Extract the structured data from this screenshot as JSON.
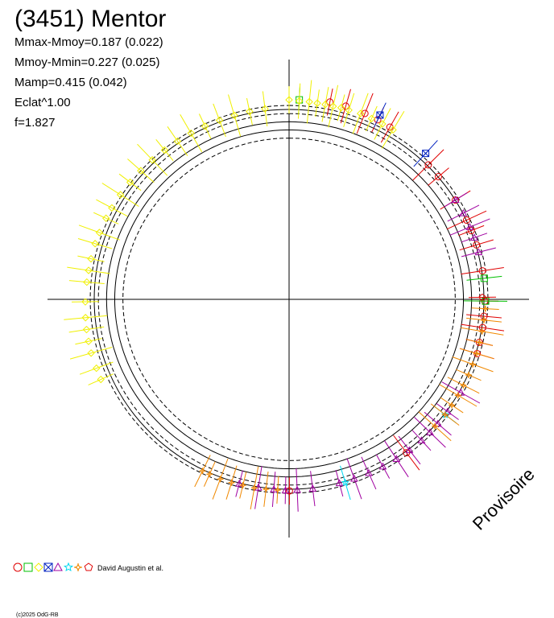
{
  "chart_data": {
    "type": "polar-lightcurve",
    "title": "(3451) Mentor",
    "stats": [
      "Mmax-Mmoy=0.187 (0.022)",
      "Mmoy-Mmin=0.227 (0.025)",
      "Mamp=0.415 (0.042)",
      "Eclat^1.00",
      "f=1.827"
    ],
    "watermark": "Provisoire",
    "credit": "David Augustin et al.",
    "copyright": "(c)2025 OdG-RB",
    "model": {
      "mmax_minus_mmoy": 0.187,
      "mmoy_minus_mmin": 0.227,
      "amplitude": 0.415,
      "radial_scale": 2.9
    },
    "series": [
      {
        "name": "circle",
        "marker": "circle",
        "color": "#e00000",
        "points": [
          [
            0.2,
            4.7
          ],
          [
            0.28,
            4.58
          ],
          [
            0.38,
            4.26
          ],
          [
            0.45,
            3.95
          ],
          [
            0.52,
            3.55
          ],
          [
            0.79,
            0.5
          ],
          [
            0.87,
            0.2
          ],
          [
            1.02,
            0.0
          ],
          [
            1.14,
            0.08
          ],
          [
            1.2,
            0.1
          ],
          [
            1.28,
            0.16
          ],
          [
            1.42,
            0.1
          ],
          [
            1.58,
            0.16
          ],
          [
            1.66,
            0.14
          ],
          [
            1.72,
            0.16
          ],
          [
            1.8,
            0.02
          ],
          [
            1.86,
            0.4
          ],
          [
            2.5,
            0.6
          ],
          [
            3.14,
            0.5
          ]
        ]
      },
      {
        "name": "square",
        "marker": "square",
        "color": "#00c000",
        "points": [
          [
            0.05,
            4.0
          ],
          [
            1.46,
            0.45
          ],
          [
            1.58,
            0.5
          ]
        ]
      },
      {
        "name": "diamond",
        "marker": "diamond",
        "color": "#f0f000",
        "points": [
          [
            0.0,
            3.9
          ],
          [
            0.05,
            3.5
          ],
          [
            0.1,
            3.5
          ],
          [
            0.14,
            3.3
          ],
          [
            0.18,
            3.3
          ],
          [
            0.22,
            3.2
          ],
          [
            0.26,
            3.4
          ],
          [
            0.3,
            3.3
          ],
          [
            0.36,
            3.55
          ],
          [
            0.42,
            3.3
          ],
          [
            0.48,
            3.25
          ],
          [
            0.54,
            3.2
          ],
          [
            4.3,
            4.4
          ],
          [
            4.36,
            4.3
          ],
          [
            4.44,
            4.4
          ],
          [
            4.5,
            4.2
          ],
          [
            4.56,
            4.1
          ],
          [
            4.62,
            3.9
          ],
          [
            4.7,
            3.6
          ],
          [
            4.8,
            3.3
          ],
          [
            4.86,
            3.15
          ],
          [
            4.92,
            3.05
          ],
          [
            5.0,
            3.0
          ],
          [
            5.06,
            2.8
          ],
          [
            5.14,
            2.55
          ],
          [
            5.2,
            2.35
          ],
          [
            5.28,
            2.1
          ],
          [
            5.36,
            1.85
          ],
          [
            5.44,
            1.55
          ],
          [
            5.52,
            1.3
          ],
          [
            5.6,
            1.05
          ],
          [
            5.68,
            0.85
          ],
          [
            5.76,
            0.7
          ],
          [
            5.84,
            0.6
          ],
          [
            5.92,
            0.55
          ],
          [
            6.0,
            0.55
          ],
          [
            6.08,
            0.6
          ],
          [
            6.16,
            0.7
          ]
        ]
      },
      {
        "name": "cross",
        "marker": "x",
        "color": "#0020c0",
        "points": [
          [
            0.45,
            6.2
          ],
          [
            0.74,
            3.3
          ]
        ]
      },
      {
        "name": "triangle",
        "marker": "triangle",
        "color": "#a000a0",
        "points": [
          [
            1.02,
            0.2
          ],
          [
            1.1,
            0.15
          ],
          [
            1.18,
            0.1
          ],
          [
            1.24,
            0.22
          ],
          [
            1.32,
            0.18
          ],
          [
            2.08,
            0.7
          ],
          [
            2.2,
            0.45
          ],
          [
            2.28,
            0.5
          ],
          [
            2.34,
            0.55
          ],
          [
            2.4,
            0.55
          ],
          [
            2.48,
            0.5
          ],
          [
            2.56,
            0.35
          ],
          [
            2.64,
            0.2
          ],
          [
            2.72,
            0.05
          ],
          [
            2.8,
            0.0
          ],
          [
            2.88,
            0.0
          ],
          [
            3.02,
            0.1
          ],
          [
            3.1,
            0.14
          ],
          [
            3.16,
            0.28
          ],
          [
            3.22,
            0.08
          ],
          [
            3.3,
            0.1
          ],
          [
            3.4,
            0.14
          ]
        ]
      },
      {
        "name": "star",
        "marker": "star",
        "color": "#00d8f0",
        "points": [
          [
            2.22,
            0.5
          ],
          [
            2.85,
            0.5
          ]
        ]
      },
      {
        "name": "4star",
        "marker": "sparkle",
        "color": "#f08800",
        "points": [
          [
            1.62,
            0.5
          ],
          [
            1.68,
            0.3
          ],
          [
            1.74,
            0.2
          ],
          [
            1.8,
            0.1
          ],
          [
            1.86,
            0.2
          ],
          [
            1.92,
            0.1
          ],
          [
            1.98,
            0.2
          ],
          [
            2.04,
            0.15
          ],
          [
            2.1,
            0.25
          ],
          [
            2.16,
            0.3
          ],
          [
            2.22,
            0.35
          ],
          [
            2.3,
            0.25
          ],
          [
            3.2,
            0.25
          ],
          [
            3.26,
            0.35
          ],
          [
            3.32,
            0.55
          ],
          [
            3.38,
            0.4
          ],
          [
            3.44,
            0.6
          ],
          [
            3.5,
            0.7
          ],
          [
            3.56,
            0.45
          ],
          [
            3.6,
            0.5
          ]
        ]
      },
      {
        "name": "pentagon",
        "marker": "pentagon",
        "color": "#e00000",
        "points": [
          [
            1.56,
            -0.9
          ]
        ]
      }
    ]
  }
}
